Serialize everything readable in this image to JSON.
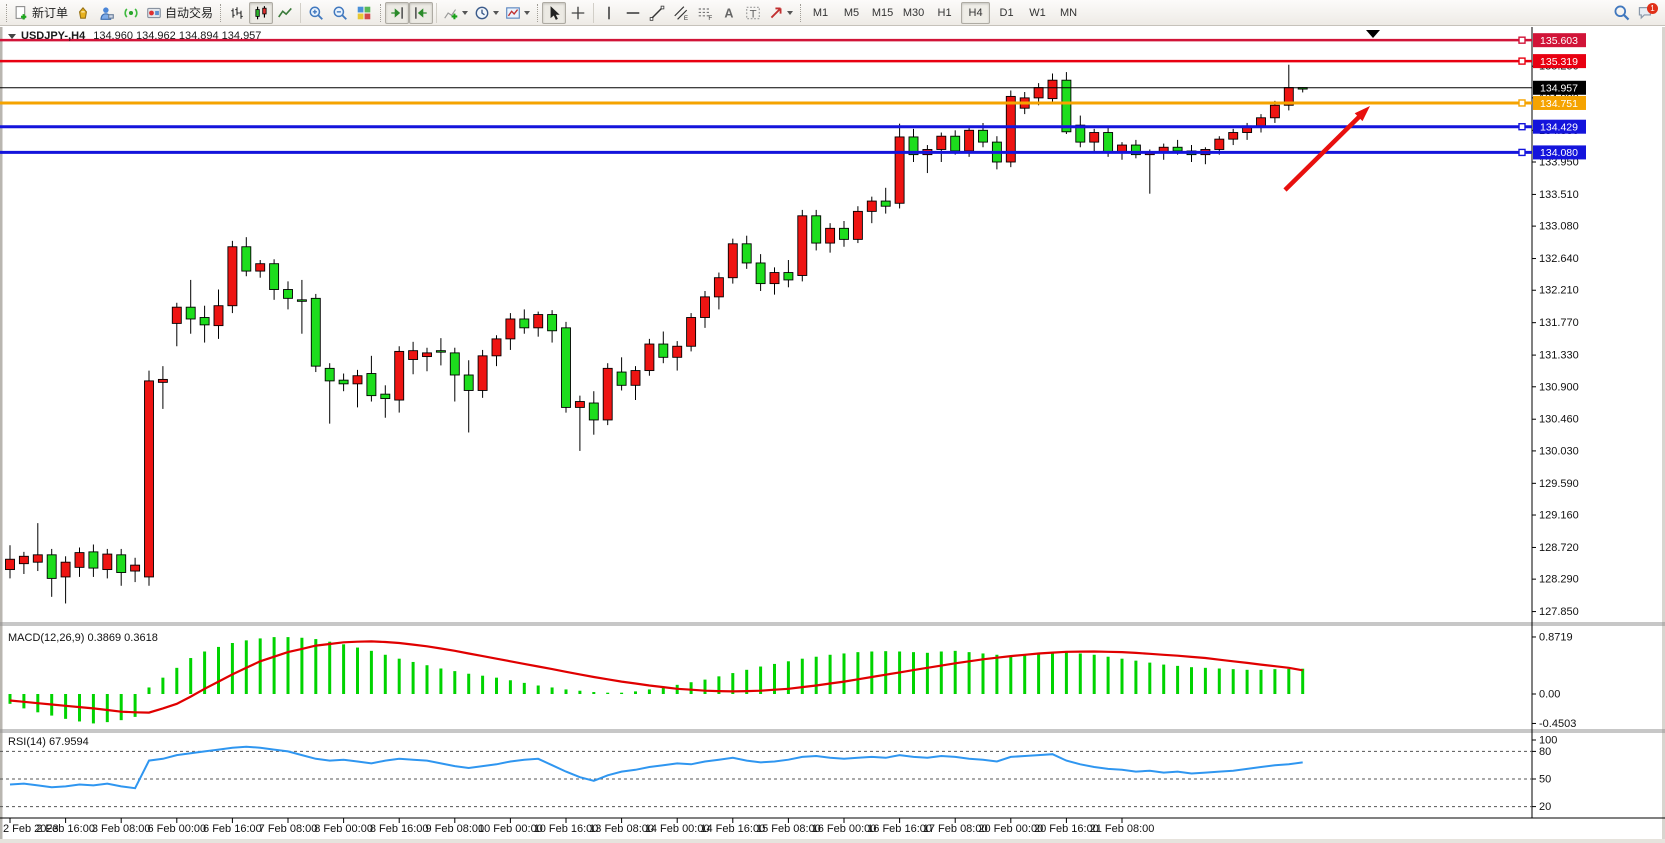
{
  "window": {
    "symbol_period": "USDJPY-,H4",
    "ohlc": "134.960 134.962 134.894 134.957"
  },
  "toolbar": {
    "new_order_label": "新订单",
    "autotrading_label": "自动交易",
    "notification_count": "1",
    "timeframes": [
      "M1",
      "M5",
      "M15",
      "M30",
      "H1",
      "H4",
      "D1",
      "W1",
      "MN"
    ],
    "active_timeframe": "H4",
    "icon_names": [
      "new-order-icon",
      "market-watch-icon",
      "navigator-icon",
      "signal-icon",
      "autotrading-icon",
      "bar-chart-icon",
      "candlestick-chart-icon",
      "line-chart-icon",
      "zoom-in-icon",
      "zoom-out-icon",
      "tile-windows-icon",
      "auto-scroll-icon",
      "chart-shift-icon",
      "add-indicator-icon",
      "periods-icon",
      "template-icon",
      "cursor-icon",
      "crosshair-icon",
      "vertical-line-icon",
      "horizontal-line-icon",
      "trendline-icon",
      "channel-icon",
      "fibonacci-icon",
      "text-icon",
      "text-label-icon",
      "arrows-tool-icon",
      "search-icon",
      "notification-icon"
    ]
  },
  "price_axis": {
    "ticks": [
      "135.250",
      "134.820",
      "134.380",
      "133.950",
      "133.510",
      "133.080",
      "132.640",
      "132.210",
      "131.770",
      "131.330",
      "130.900",
      "130.460",
      "130.030",
      "129.590",
      "129.160",
      "128.720",
      "128.290",
      "127.850"
    ]
  },
  "levels": [
    {
      "value": "135.603",
      "color": "#d11438",
      "lw": 2.5,
      "handle": true
    },
    {
      "value": "135.319",
      "color": "#e80011",
      "lw": 2.5,
      "handle": true
    },
    {
      "value": "134.957",
      "color": "#000000",
      "lw": 1,
      "handle": false
    },
    {
      "value": "134.751",
      "color": "#f5a300",
      "lw": 3,
      "handle": true
    },
    {
      "value": "134.429",
      "color": "#1414dc",
      "lw": 3,
      "handle": true
    },
    {
      "value": "134.080",
      "color": "#1414dc",
      "lw": 3,
      "handle": true
    }
  ],
  "time_axis": {
    "labels": [
      "2 Feb 2023",
      "2 Feb 16:00",
      "3 Feb 08:00",
      "6 Feb 00:00",
      "6 Feb 16:00",
      "7 Feb 08:00",
      "8 Feb 00:00",
      "8 Feb 16:00",
      "9 Feb 08:00",
      "10 Feb 00:00",
      "10 Feb 16:00",
      "13 Feb 08:00",
      "14 Feb 00:00",
      "14 Feb 16:00",
      "15 Feb 08:00",
      "16 Feb 00:00",
      "16 Feb 16:00",
      "17 Feb 08:00",
      "20 Feb 00:00",
      "20 Feb 16:00",
      "21 Feb 08:00"
    ],
    "candles_per_label": 4
  },
  "chart_data": {
    "type": "candlestick",
    "symbol": "USDJPY",
    "period": "H4",
    "up_color": "#ee1412",
    "down_color": "#1ddd1d",
    "candles": [
      [
        128.42,
        128.75,
        128.3,
        128.56
      ],
      [
        128.5,
        128.66,
        128.36,
        128.6
      ],
      [
        128.52,
        129.05,
        128.4,
        128.62
      ],
      [
        128.62,
        128.7,
        128.05,
        128.3
      ],
      [
        128.32,
        128.6,
        127.96,
        128.52
      ],
      [
        128.45,
        128.72,
        128.32,
        128.65
      ],
      [
        128.66,
        128.76,
        128.32,
        128.44
      ],
      [
        128.42,
        128.7,
        128.3,
        128.63
      ],
      [
        128.62,
        128.7,
        128.2,
        128.38
      ],
      [
        128.4,
        128.58,
        128.25,
        128.48
      ],
      [
        128.32,
        131.12,
        128.2,
        130.98
      ],
      [
        130.96,
        131.18,
        130.6,
        131.0
      ],
      [
        131.76,
        132.04,
        131.45,
        131.98
      ],
      [
        131.98,
        132.35,
        131.62,
        131.82
      ],
      [
        131.84,
        132.0,
        131.5,
        131.74
      ],
      [
        131.73,
        132.22,
        131.55,
        132.0
      ],
      [
        132.0,
        132.88,
        131.9,
        132.8
      ],
      [
        132.8,
        132.93,
        132.4,
        132.47
      ],
      [
        132.47,
        132.62,
        132.38,
        132.57
      ],
      [
        132.57,
        132.63,
        132.08,
        132.22
      ],
      [
        132.22,
        132.33,
        131.95,
        132.1
      ],
      [
        132.08,
        132.35,
        131.62,
        132.06
      ],
      [
        132.1,
        132.16,
        131.1,
        131.18
      ],
      [
        131.15,
        131.22,
        130.4,
        130.98
      ],
      [
        130.99,
        131.08,
        130.84,
        130.94
      ],
      [
        130.94,
        131.13,
        130.62,
        131.05
      ],
      [
        131.08,
        131.32,
        130.7,
        130.78
      ],
      [
        130.8,
        130.92,
        130.48,
        130.74
      ],
      [
        130.72,
        131.45,
        130.55,
        131.38
      ],
      [
        131.27,
        131.51,
        131.07,
        131.39
      ],
      [
        131.31,
        131.43,
        131.11,
        131.36
      ],
      [
        131.39,
        131.56,
        131.19,
        131.37
      ],
      [
        131.36,
        131.43,
        130.7,
        131.06
      ],
      [
        131.06,
        131.26,
        130.28,
        130.85
      ],
      [
        130.85,
        131.4,
        130.75,
        131.32
      ],
      [
        131.32,
        131.6,
        131.18,
        131.55
      ],
      [
        131.55,
        131.9,
        131.4,
        131.82
      ],
      [
        131.82,
        131.95,
        131.62,
        131.7
      ],
      [
        131.7,
        131.92,
        131.58,
        131.88
      ],
      [
        131.88,
        131.94,
        131.5,
        131.66
      ],
      [
        131.7,
        131.78,
        130.55,
        130.62
      ],
      [
        130.62,
        130.78,
        130.03,
        130.7
      ],
      [
        130.68,
        130.84,
        130.25,
        130.45
      ],
      [
        130.45,
        131.22,
        130.38,
        131.15
      ],
      [
        131.1,
        131.3,
        130.85,
        130.92
      ],
      [
        130.92,
        131.18,
        130.72,
        131.12
      ],
      [
        131.12,
        131.55,
        131.05,
        131.48
      ],
      [
        131.48,
        131.65,
        131.22,
        131.3
      ],
      [
        131.3,
        131.52,
        131.12,
        131.45
      ],
      [
        131.45,
        131.9,
        131.38,
        131.84
      ],
      [
        131.84,
        132.2,
        131.7,
        132.12
      ],
      [
        132.12,
        132.45,
        131.95,
        132.38
      ],
      [
        132.38,
        132.91,
        132.3,
        132.84
      ],
      [
        132.84,
        132.95,
        132.5,
        132.58
      ],
      [
        132.58,
        132.7,
        132.2,
        132.3
      ],
      [
        132.3,
        132.52,
        132.15,
        132.45
      ],
      [
        132.45,
        132.62,
        132.25,
        132.35
      ],
      [
        132.41,
        133.3,
        132.33,
        133.22
      ],
      [
        133.22,
        133.3,
        132.75,
        132.85
      ],
      [
        132.85,
        133.12,
        132.72,
        133.05
      ],
      [
        133.05,
        133.15,
        132.8,
        132.9
      ],
      [
        132.9,
        133.35,
        132.85,
        133.28
      ],
      [
        133.28,
        133.48,
        133.12,
        133.42
      ],
      [
        133.42,
        133.6,
        133.25,
        133.35
      ],
      [
        133.39,
        134.47,
        133.32,
        134.29
      ],
      [
        134.29,
        134.4,
        133.95,
        134.05
      ],
      [
        134.05,
        134.18,
        133.8,
        134.12
      ],
      [
        134.12,
        134.35,
        133.95,
        134.3
      ],
      [
        134.3,
        134.38,
        134.05,
        134.1
      ],
      [
        134.1,
        134.42,
        134.02,
        134.38
      ],
      [
        134.38,
        134.48,
        134.15,
        134.22
      ],
      [
        134.22,
        134.3,
        133.85,
        133.95
      ],
      [
        133.95,
        134.92,
        133.88,
        134.84
      ],
      [
        134.68,
        134.9,
        134.6,
        134.82
      ],
      [
        134.82,
        135.02,
        134.72,
        134.96
      ],
      [
        134.81,
        135.15,
        134.76,
        135.06
      ],
      [
        135.06,
        135.17,
        134.33,
        134.36
      ],
      [
        134.45,
        134.58,
        134.15,
        134.22
      ],
      [
        134.22,
        134.4,
        134.08,
        134.35
      ],
      [
        134.35,
        134.42,
        134.02,
        134.08
      ],
      [
        134.08,
        134.22,
        133.98,
        134.18
      ],
      [
        134.18,
        134.25,
        134.0,
        134.05
      ],
      [
        134.05,
        134.12,
        133.52,
        134.08
      ],
      [
        134.08,
        134.2,
        133.98,
        134.15
      ],
      [
        134.15,
        134.25,
        134.05,
        134.1
      ],
      [
        134.1,
        134.18,
        133.95,
        134.05
      ],
      [
        134.05,
        134.15,
        133.92,
        134.12
      ],
      [
        134.12,
        134.3,
        134.05,
        134.26
      ],
      [
        134.26,
        134.4,
        134.18,
        134.35
      ],
      [
        134.35,
        134.48,
        134.25,
        134.44
      ],
      [
        134.44,
        134.6,
        134.35,
        134.55
      ],
      [
        134.55,
        134.78,
        134.48,
        134.72
      ],
      [
        134.72,
        135.27,
        134.65,
        134.96
      ],
      [
        134.96,
        134.962,
        134.894,
        134.957
      ]
    ],
    "macd": {
      "label": "MACD(12,26,9)",
      "values_label": "0.3869 0.3618",
      "axis": [
        "0.8719",
        "0.00",
        "-0.4503"
      ],
      "histogram": [
        -0.15,
        -0.22,
        -0.28,
        -0.33,
        -0.38,
        -0.42,
        -0.45,
        -0.43,
        -0.4,
        -0.35,
        0.1,
        0.25,
        0.4,
        0.55,
        0.65,
        0.72,
        0.78,
        0.82,
        0.85,
        0.87,
        0.87,
        0.86,
        0.84,
        0.8,
        0.76,
        0.71,
        0.66,
        0.6,
        0.54,
        0.49,
        0.44,
        0.39,
        0.35,
        0.31,
        0.28,
        0.25,
        0.21,
        0.17,
        0.13,
        0.1,
        0.07,
        0.05,
        0.03,
        0.02,
        0.02,
        0.04,
        0.07,
        0.1,
        0.14,
        0.18,
        0.22,
        0.27,
        0.32,
        0.37,
        0.42,
        0.46,
        0.5,
        0.54,
        0.57,
        0.6,
        0.62,
        0.64,
        0.65,
        0.655,
        0.65,
        0.64,
        0.63,
        0.65,
        0.66,
        0.64,
        0.62,
        0.6,
        0.58,
        0.6,
        0.62,
        0.63,
        0.64,
        0.62,
        0.6,
        0.57,
        0.54,
        0.51,
        0.48,
        0.45,
        0.43,
        0.41,
        0.4,
        0.39,
        0.38,
        0.37,
        0.37,
        0.38,
        0.385,
        0.387
      ],
      "signal": [
        -0.1,
        -0.12,
        -0.14,
        -0.16,
        -0.18,
        -0.2,
        -0.22,
        -0.245,
        -0.27,
        -0.28,
        -0.285,
        -0.22,
        -0.15,
        -0.04,
        0.08,
        0.19,
        0.3,
        0.4,
        0.5,
        0.57,
        0.64,
        0.69,
        0.74,
        0.765,
        0.79,
        0.8,
        0.805,
        0.795,
        0.78,
        0.755,
        0.73,
        0.695,
        0.66,
        0.62,
        0.58,
        0.54,
        0.5,
        0.46,
        0.42,
        0.38,
        0.34,
        0.3,
        0.26,
        0.225,
        0.19,
        0.16,
        0.13,
        0.105,
        0.08,
        0.065,
        0.05,
        0.045,
        0.04,
        0.045,
        0.05,
        0.065,
        0.08,
        0.105,
        0.13,
        0.16,
        0.19,
        0.225,
        0.26,
        0.295,
        0.33,
        0.365,
        0.4,
        0.435,
        0.47,
        0.5,
        0.53,
        0.555,
        0.58,
        0.6,
        0.62,
        0.633,
        0.645,
        0.648,
        0.65,
        0.645,
        0.64,
        0.628,
        0.615,
        0.6,
        0.585,
        0.568,
        0.55,
        0.525,
        0.5,
        0.475,
        0.45,
        0.425,
        0.4,
        0.362
      ]
    },
    "rsi": {
      "label": "RSI(14)",
      "value_label": "67.9594",
      "axis": [
        "100",
        "80",
        "50",
        "20"
      ],
      "levels": [
        80,
        50,
        20
      ],
      "values": [
        44,
        45,
        43,
        41,
        42,
        44,
        43,
        45,
        42,
        40,
        70,
        72,
        76,
        78,
        80,
        82,
        84,
        85,
        84,
        82,
        80,
        76,
        72,
        70,
        71,
        69,
        67,
        70,
        72,
        71,
        70,
        67,
        64,
        62,
        64,
        66,
        69,
        71,
        72,
        65,
        58,
        52,
        48,
        54,
        58,
        60,
        63,
        65,
        67,
        66,
        69,
        71,
        73,
        70,
        68,
        69,
        71,
        74,
        75,
        73,
        72,
        73,
        74,
        73,
        76,
        74,
        73,
        75,
        74,
        72,
        71,
        69,
        74,
        75,
        76,
        77,
        70,
        66,
        63,
        61,
        60,
        58,
        59,
        57,
        58,
        56,
        57,
        58,
        59,
        61,
        63,
        65,
        66,
        68
      ]
    }
  },
  "annotations": {
    "arrow": {
      "from": [
        1285,
        190
      ],
      "to": [
        1370,
        106
      ],
      "color": "#e8100e"
    }
  }
}
